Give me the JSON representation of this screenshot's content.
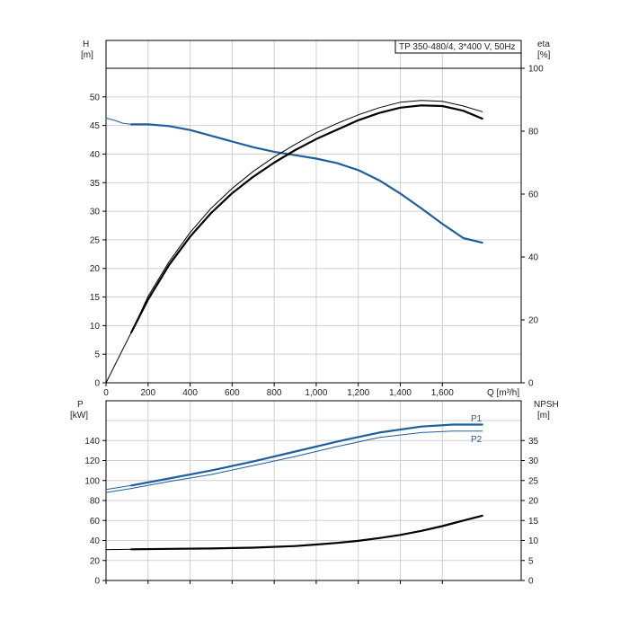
{
  "chart_data": [
    {
      "type": "line",
      "title": "TP 350-480/4, 3*400 V, 50Hz",
      "xlabel": "Q [m³/h]",
      "ylabel_left": [
        "H",
        "[m]"
      ],
      "ylabel_right": [
        "eta",
        "[%]"
      ],
      "xlim": [
        0,
        1975
      ],
      "ylim_left": [
        0,
        55
      ],
      "ylim_right": [
        0,
        100
      ],
      "xticks": [
        0,
        200,
        400,
        600,
        800,
        1000,
        1200,
        1400,
        1600
      ],
      "xtick_labels": [
        "0",
        "200",
        "400",
        "600",
        "800",
        "1,000",
        "1,200",
        "1,400",
        "1,600"
      ],
      "yticks_left": [
        0,
        5,
        10,
        15,
        20,
        25,
        30,
        35,
        40,
        45,
        50
      ],
      "yticks_right": [
        0,
        20,
        40,
        60,
        80,
        100
      ],
      "grid": true,
      "series": [
        {
          "axis": "left",
          "color": "#1f5e9c",
          "x": [
            120,
            200,
            300,
            400,
            500,
            600,
            700,
            800,
            900,
            1000,
            1100,
            1200,
            1300,
            1400,
            1500,
            1600,
            1700,
            1790
          ],
          "y": [
            45.2,
            45.2,
            44.9,
            44.2,
            43.2,
            42.2,
            41.2,
            40.4,
            39.8,
            39.2,
            38.4,
            37.2,
            35.4,
            33.1,
            30.5,
            27.8,
            25.3,
            24.5
          ]
        },
        {
          "axis": "left",
          "color": "#1f5e9c",
          "thin": true,
          "x": [
            0,
            40,
            80,
            120
          ],
          "y": [
            46.3,
            45.9,
            45.4,
            45.2
          ]
        },
        {
          "axis": "right",
          "color": "#000000",
          "x": [
            120,
            200,
            300,
            400,
            500,
            600,
            700,
            800,
            900,
            1000,
            1100,
            1200,
            1300,
            1400,
            1500,
            1600,
            1700,
            1790
          ],
          "y": [
            16,
            26.5,
            37.5,
            46.5,
            54,
            60.3,
            65.5,
            70,
            74,
            77.5,
            80.5,
            83.5,
            85.8,
            87.5,
            88.2,
            88,
            86.5,
            84
          ]
        },
        {
          "axis": "right",
          "color": "#000000",
          "thin": true,
          "x": [
            0,
            60,
            120
          ],
          "y": [
            0,
            8,
            16
          ]
        },
        {
          "axis": "right",
          "color": "#000000",
          "thin": true,
          "x": [
            120,
            200,
            300,
            400,
            500,
            600,
            700,
            800,
            900,
            1000,
            1100,
            1200,
            1300,
            1400,
            1500,
            1600,
            1700,
            1790
          ],
          "y": [
            16,
            27.5,
            38.5,
            47.8,
            55.5,
            61.8,
            67.2,
            71.8,
            75.8,
            79.5,
            82.5,
            85.2,
            87.5,
            89.2,
            89.8,
            89.5,
            88,
            86.2
          ]
        }
      ]
    },
    {
      "type": "line",
      "xlabel": "",
      "ylabel_left": [
        "P",
        "[kW]"
      ],
      "ylabel_right": [
        "NPSH",
        "[m]"
      ],
      "xlim": [
        0,
        1975
      ],
      "ylim_left": [
        0,
        160
      ],
      "ylim_right": [
        0,
        40
      ],
      "xticks": [
        0,
        200,
        400,
        600,
        800,
        1000,
        1200,
        1400,
        1600
      ],
      "yticks_left": [
        0,
        20,
        40,
        60,
        80,
        100,
        120,
        140
      ],
      "yticks_right": [
        0,
        5,
        10,
        15,
        20,
        25,
        30,
        35
      ],
      "grid": true,
      "series": [
        {
          "name": "P1",
          "axis": "left",
          "color": "#1f5e9c",
          "x": [
            120,
            300,
            500,
            700,
            900,
            1100,
            1300,
            1500,
            1650,
            1790
          ],
          "y": [
            95,
            102,
            110,
            119,
            129,
            139,
            148,
            154,
            156,
            156
          ]
        },
        {
          "name": "P2",
          "axis": "left",
          "color": "#1f5e9c",
          "thin": true,
          "x": [
            120,
            300,
            500,
            700,
            900,
            1100,
            1300,
            1500,
            1650,
            1790
          ],
          "y": [
            92,
            99,
            106,
            115,
            124,
            134,
            143,
            148,
            149.5,
            149.5
          ]
        },
        {
          "axis": "left",
          "color": "#1f5e9c",
          "thin": true,
          "x": [
            0,
            60,
            120
          ],
          "y": [
            91,
            93,
            95
          ]
        },
        {
          "axis": "left",
          "color": "#1f5e9c",
          "thin": true,
          "x": [
            0,
            60,
            120
          ],
          "y": [
            88,
            90,
            92
          ]
        },
        {
          "axis": "right",
          "color": "#000000",
          "x": [
            120,
            300,
            500,
            700,
            900,
            1000,
            1100,
            1200,
            1300,
            1400,
            1500,
            1600,
            1700,
            1790
          ],
          "y": [
            7.8,
            7.9,
            8.0,
            8.2,
            8.6,
            9.0,
            9.4,
            9.9,
            10.6,
            11.4,
            12.4,
            13.6,
            15.0,
            16.2
          ]
        },
        {
          "axis": "right",
          "color": "#000000",
          "thin": true,
          "x": [
            0,
            120
          ],
          "y": [
            7.7,
            7.8
          ]
        }
      ]
    }
  ]
}
